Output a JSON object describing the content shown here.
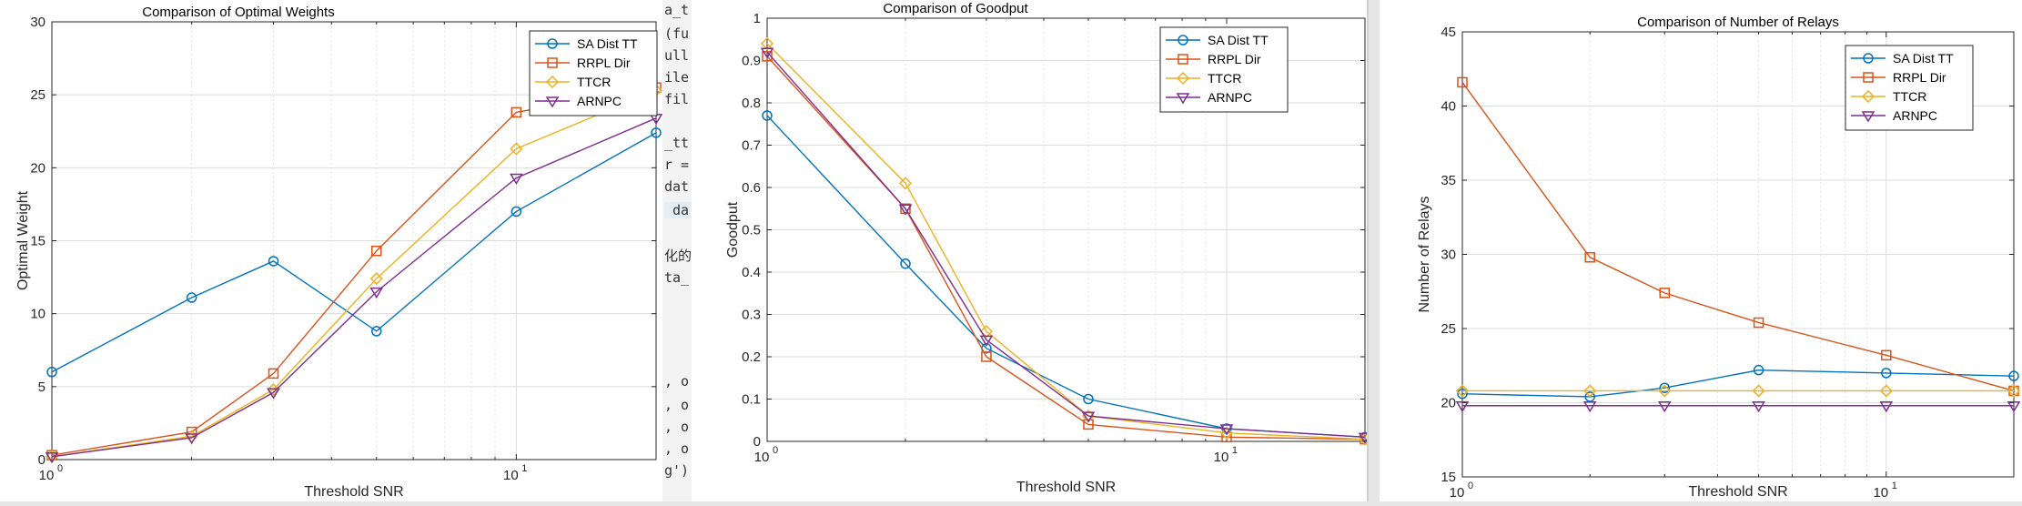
{
  "code_snippets": [
    "a_t",
    "(fu",
    "ull",
    "ile",
    "fil",
    "_tt",
    "r =",
    "dat",
    " da",
    "化的",
    "ta_",
    ", o",
    ", o",
    ", o",
    ", o",
    "g')"
  ],
  "colors": {
    "SA Dist TT": "#0072BD",
    "RRPL Dir": "#D95319",
    "TTCR": "#EDB120",
    "ARNPC": "#7E2F8E"
  },
  "chart_data": [
    {
      "type": "line",
      "title": "Comparison of Optimal Weights",
      "xlabel": "Threshold SNR",
      "ylabel": "Optimal Weight",
      "xscale": "log",
      "xlim": [
        1,
        20
      ],
      "ylim": [
        0,
        30
      ],
      "yticks": [
        0,
        5,
        10,
        15,
        20,
        25,
        30
      ],
      "ytick_labels": [
        "0",
        "5",
        "10",
        "15",
        "20",
        "25",
        "30"
      ],
      "xtick_labels": [
        {
          "base": "10",
          "exp": "0"
        },
        {
          "base": "10",
          "exp": "1"
        }
      ],
      "grid": true,
      "legend_position": "top-right",
      "x": [
        1,
        2,
        3,
        5,
        10,
        20
      ],
      "series": [
        {
          "name": "SA Dist TT",
          "marker": "circle",
          "values": [
            6.0,
            11.1,
            13.6,
            8.8,
            17.0,
            22.4
          ]
        },
        {
          "name": "RRPL Dir",
          "marker": "square",
          "values": [
            0.3,
            1.9,
            5.9,
            14.3,
            23.8,
            25.5
          ]
        },
        {
          "name": "TTCR",
          "marker": "diamond",
          "values": [
            0.2,
            1.6,
            4.8,
            12.4,
            21.3,
            25.3
          ]
        },
        {
          "name": "ARNPC",
          "marker": "triangle-down",
          "values": [
            0.2,
            1.5,
            4.6,
            11.5,
            19.3,
            23.4
          ]
        }
      ]
    },
    {
      "type": "line",
      "title": "Comparison of Goodput",
      "xlabel": "Threshold SNR",
      "ylabel": "Goodput",
      "xscale": "log",
      "xlim": [
        1,
        20
      ],
      "ylim": [
        0,
        1
      ],
      "yticks": [
        0,
        0.1,
        0.2,
        0.3,
        0.4,
        0.5,
        0.6,
        0.7,
        0.8,
        0.9,
        1
      ],
      "ytick_labels": [
        "0",
        "0.1",
        "0.2",
        "0.3",
        "0.4",
        "0.5",
        "0.6",
        "0.7",
        "0.8",
        "0.9",
        "1"
      ],
      "xtick_labels": [
        {
          "base": "10",
          "exp": "0"
        },
        {
          "base": "10",
          "exp": "1"
        }
      ],
      "grid": true,
      "legend_position": "top-right",
      "x": [
        1,
        2,
        3,
        5,
        10,
        20
      ],
      "series": [
        {
          "name": "SA Dist TT",
          "marker": "circle",
          "values": [
            0.77,
            0.42,
            0.22,
            0.1,
            0.03,
            0.01
          ]
        },
        {
          "name": "RRPL Dir",
          "marker": "square",
          "values": [
            0.91,
            0.55,
            0.2,
            0.04,
            0.01,
            0.005
          ]
        },
        {
          "name": "TTCR",
          "marker": "diamond",
          "values": [
            0.94,
            0.61,
            0.26,
            0.06,
            0.02,
            0.005
          ]
        },
        {
          "name": "ARNPC",
          "marker": "triangle-down",
          "values": [
            0.92,
            0.55,
            0.24,
            0.06,
            0.03,
            0.01
          ]
        }
      ]
    },
    {
      "type": "line",
      "title": "Comparison of Number of Relays",
      "xlabel": "Threshold SNR",
      "ylabel": "Number of Relays",
      "xscale": "log",
      "xlim": [
        1,
        20
      ],
      "ylim": [
        15,
        45
      ],
      "yticks": [
        15,
        20,
        25,
        30,
        35,
        40,
        45
      ],
      "ytick_labels": [
        "15",
        "20",
        "25",
        "30",
        "35",
        "40",
        "45"
      ],
      "xtick_labels": [
        {
          "base": "10",
          "exp": "0"
        },
        {
          "base": "10",
          "exp": "1"
        }
      ],
      "grid": true,
      "legend_position": "top-right",
      "x": [
        1,
        2,
        3,
        5,
        10,
        20
      ],
      "series": [
        {
          "name": "SA Dist TT",
          "marker": "circle",
          "values": [
            20.6,
            20.4,
            21.0,
            22.2,
            22.0,
            21.8
          ]
        },
        {
          "name": "RRPL Dir",
          "marker": "square",
          "values": [
            41.6,
            29.8,
            27.4,
            25.4,
            23.2,
            20.8
          ]
        },
        {
          "name": "TTCR",
          "marker": "diamond",
          "values": [
            20.8,
            20.8,
            20.8,
            20.8,
            20.8,
            20.8
          ]
        },
        {
          "name": "ARNPC",
          "marker": "triangle-down",
          "values": [
            19.8,
            19.8,
            19.8,
            19.8,
            19.8,
            19.8
          ]
        }
      ]
    }
  ]
}
